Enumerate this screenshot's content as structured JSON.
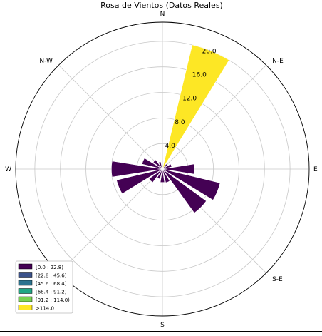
{
  "chart_data": {
    "type": "windrose",
    "title": "Rosa de Vientos (Datos Reales)",
    "directions": [
      "N",
      "N-E",
      "E",
      "S-E",
      "S",
      "W",
      "N-W"
    ],
    "direction_angles_deg": [
      0,
      45,
      90,
      135,
      180,
      270,
      315
    ],
    "radial_ticks": [
      4.0,
      8.0,
      12.0,
      16.0,
      20.0
    ],
    "rmax": 23.0,
    "sector_width_deg": 18,
    "legend_placement": "lower-left",
    "legend": [
      {
        "label": "[0.0 : 22.8)",
        "color": "#440154"
      },
      {
        "label": "[22.8 : 45.6)",
        "color": "#3b528b"
      },
      {
        "label": "[45.6 : 68.4)",
        "color": "#2c728e"
      },
      {
        "label": "[68.4 : 91.2)",
        "color": "#21a685"
      },
      {
        "label": "[91.2 : 114.0)",
        "color": "#7ad151"
      },
      {
        "label": ">114.0",
        "color": "#fde725"
      }
    ],
    "bars": [
      {
        "direction_deg": 0,
        "value": 0.3,
        "bin": 0
      },
      {
        "direction_deg": 22.5,
        "value": 20.0,
        "bin": 5
      },
      {
        "direction_deg": 45,
        "value": 1.0,
        "bin": 0
      },
      {
        "direction_deg": 67.5,
        "value": 1.5,
        "bin": 0
      },
      {
        "direction_deg": 90,
        "value": 5.0,
        "bin": 0
      },
      {
        "direction_deg": 112.5,
        "value": 9.3,
        "bin": 0
      },
      {
        "direction_deg": 135,
        "value": 8.5,
        "bin": 0
      },
      {
        "direction_deg": 157.5,
        "value": 2.2,
        "bin": 0
      },
      {
        "direction_deg": 180,
        "value": 2.1,
        "bin": 0
      },
      {
        "direction_deg": 202.5,
        "value": 1.6,
        "bin": 0
      },
      {
        "direction_deg": 225,
        "value": 2.6,
        "bin": 0
      },
      {
        "direction_deg": 247.5,
        "value": 7.4,
        "bin": 0
      },
      {
        "direction_deg": 270,
        "value": 8.0,
        "bin": 0
      },
      {
        "direction_deg": 292.5,
        "value": 3.3,
        "bin": 0
      },
      {
        "direction_deg": 315,
        "value": 1.8,
        "bin": 0
      },
      {
        "direction_deg": 337.5,
        "value": 1.2,
        "bin": 0
      }
    ],
    "grid": true
  }
}
